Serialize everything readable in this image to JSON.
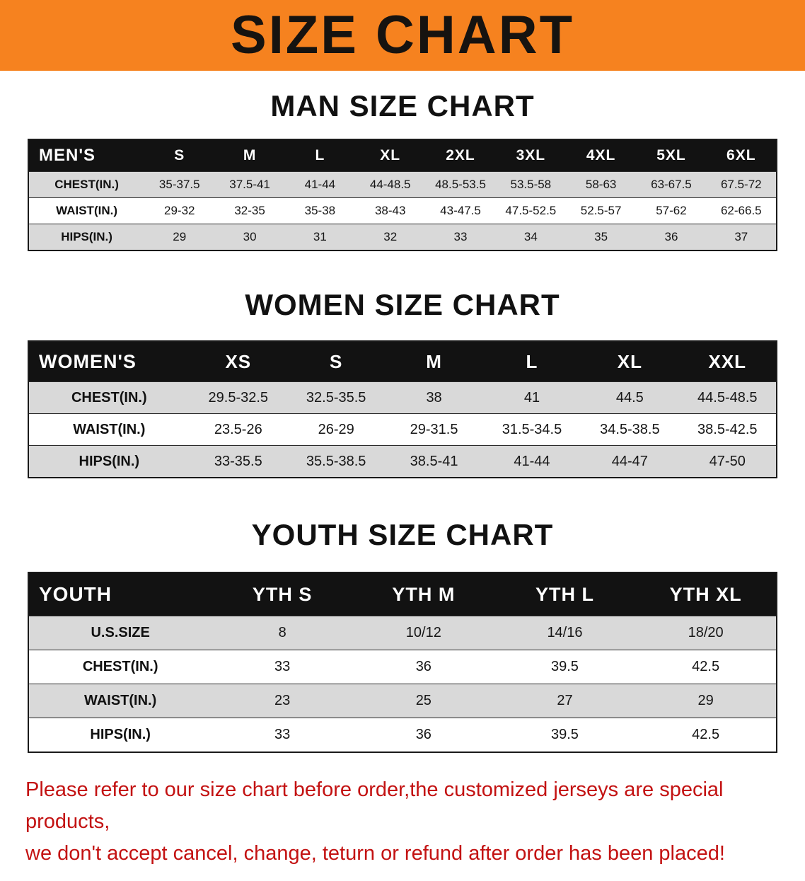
{
  "banner": {
    "title": "SIZE CHART",
    "bg_color": "#f6821f",
    "text_color": "#161310"
  },
  "colors": {
    "table_header_bg": "#121212",
    "table_header_text": "#ffffff",
    "row_stripe_gray": "#d9d9d9",
    "disclaimer_red": "#c31212"
  },
  "sections": [
    {
      "heading": "MAN SIZE CHART",
      "table": {
        "header": [
          "MEN'S",
          "S",
          "M",
          "L",
          "XL",
          "2XL",
          "3XL",
          "4XL",
          "5XL",
          "6XL"
        ],
        "rows": [
          {
            "label": "CHEST(IN.)",
            "values": [
              "35-37.5",
              "37.5-41",
              "41-44",
              "44-48.5",
              "48.5-53.5",
              "53.5-58",
              "58-63",
              "63-67.5",
              "67.5-72"
            ]
          },
          {
            "label": "WAIST(IN.)",
            "values": [
              "29-32",
              "32-35",
              "35-38",
              "38-43",
              "43-47.5",
              "47.5-52.5",
              "52.5-57",
              "57-62",
              "62-66.5"
            ]
          },
          {
            "label": "HIPS(IN.)",
            "values": [
              "29",
              "30",
              "31",
              "32",
              "33",
              "34",
              "35",
              "36",
              "37"
            ]
          }
        ]
      }
    },
    {
      "heading": "WOMEN SIZE CHART",
      "table": {
        "header": [
          "WOMEN'S",
          "XS",
          "S",
          "M",
          "L",
          "XL",
          "XXL"
        ],
        "rows": [
          {
            "label": "CHEST(IN.)",
            "values": [
              "29.5-32.5",
              "32.5-35.5",
              "38",
              "41",
              "44.5",
              "44.5-48.5"
            ]
          },
          {
            "label": "WAIST(IN.)",
            "values": [
              "23.5-26",
              "26-29",
              "29-31.5",
              "31.5-34.5",
              "34.5-38.5",
              "38.5-42.5"
            ]
          },
          {
            "label": "HIPS(IN.)",
            "values": [
              "33-35.5",
              "35.5-38.5",
              "38.5-41",
              "41-44",
              "44-47",
              "47-50"
            ]
          }
        ]
      }
    },
    {
      "heading": "YOUTH SIZE CHART",
      "table": {
        "header": [
          "YOUTH",
          "YTH S",
          "YTH M",
          "YTH L",
          "YTH XL"
        ],
        "rows": [
          {
            "label": "U.S.SIZE",
            "values": [
              "8",
              "10/12",
              "14/16",
              "18/20"
            ]
          },
          {
            "label": "CHEST(IN.)",
            "values": [
              "33",
              "36",
              "39.5",
              "42.5"
            ]
          },
          {
            "label": "WAIST(IN.)",
            "values": [
              "23",
              "25",
              "27",
              "29"
            ]
          },
          {
            "label": "HIPS(IN.)",
            "values": [
              "33",
              "36",
              "39.5",
              "42.5"
            ]
          }
        ]
      }
    }
  ],
  "footer": {
    "line1": "Please refer to our size chart before order,the customized jerseys are special products,",
    "line2": "we don't accept cancel, change, teturn or refund after order has been placed!"
  }
}
